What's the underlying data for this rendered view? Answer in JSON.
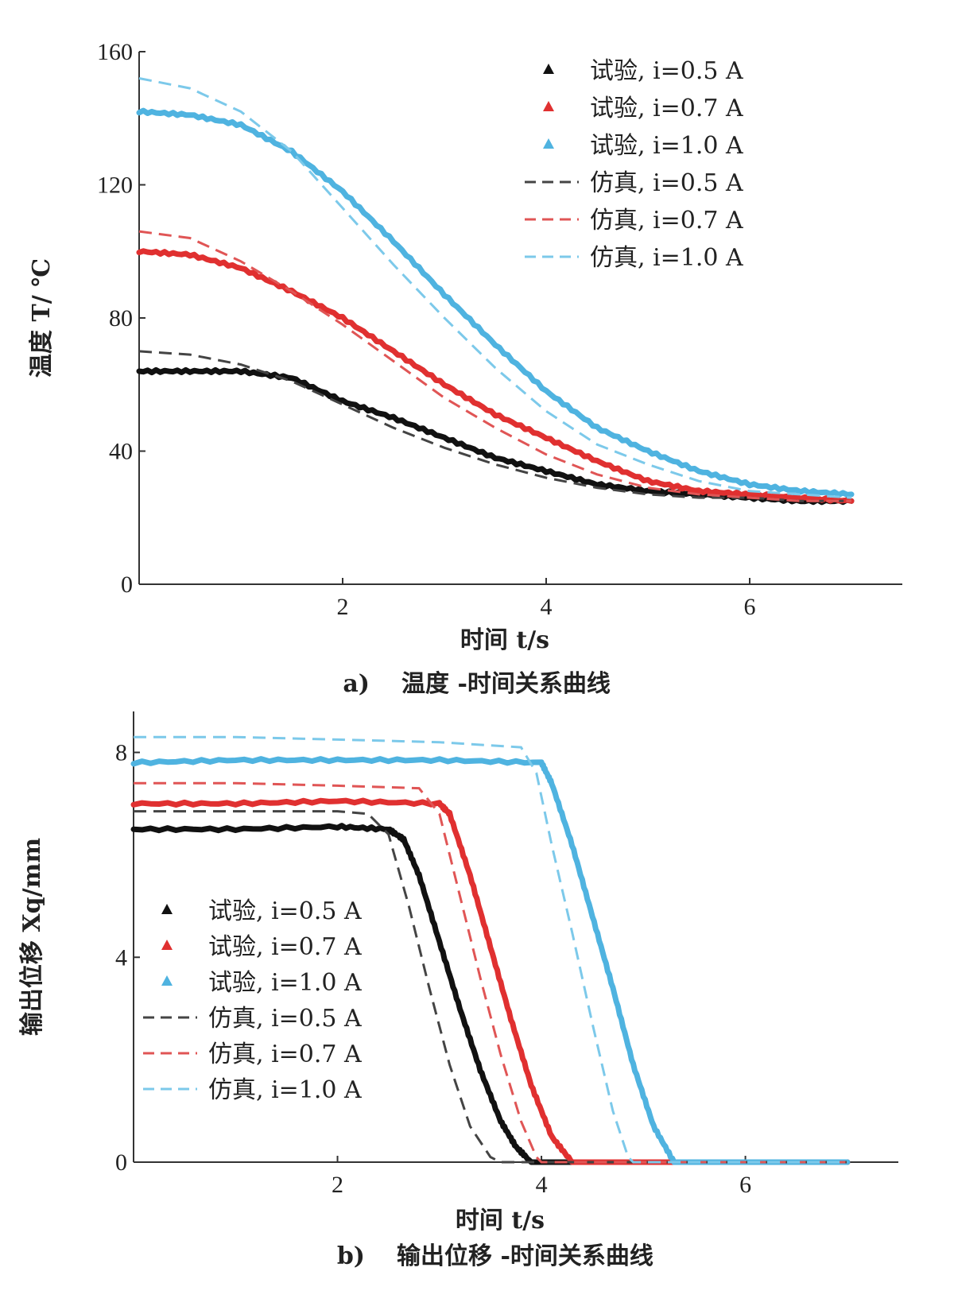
{
  "chart_data": [
    {
      "type": "line",
      "panel": "a",
      "caption_prefix": "a)",
      "caption": "温度 -时间关系曲线",
      "xlabel": "时间 t/s",
      "ylabel": "温度 T/ ℃",
      "xlim": [
        0,
        7.5
      ],
      "ylim": [
        0,
        160
      ],
      "xticks": [
        2,
        4,
        6
      ],
      "yticks": [
        0,
        40,
        80,
        120,
        160
      ],
      "legend_position": "top-right",
      "legend": [
        "试验, i=0.5 A",
        "试验, i=0.7 A",
        "试验, i=1.0 A",
        "仿真, i=0.5 A",
        "仿真, i=0.7 A",
        "仿真, i=1.0 A"
      ],
      "series": [
        {
          "name": "试验, i=0.5 A",
          "style": "experiment",
          "color": "#111111",
          "x": [
            0,
            0.5,
            1.0,
            1.5,
            2.0,
            2.5,
            3.0,
            3.5,
            4.0,
            4.5,
            5.0,
            5.5,
            6.0,
            6.5,
            7.0
          ],
          "y": [
            64,
            64,
            64,
            62,
            55,
            50,
            44,
            38,
            34,
            30,
            28,
            27,
            26,
            25,
            25
          ]
        },
        {
          "name": "试验, i=0.7 A",
          "style": "experiment",
          "color": "#e03030",
          "x": [
            0,
            0.5,
            1.0,
            1.5,
            2.0,
            2.5,
            3.0,
            3.5,
            4.0,
            4.5,
            5.0,
            5.5,
            6.0,
            6.5,
            7.0
          ],
          "y": [
            100,
            99,
            95,
            88,
            80,
            70,
            60,
            51,
            44,
            37,
            31,
            28,
            27,
            26,
            25
          ]
        },
        {
          "name": "试验, i=1.0 A",
          "style": "experiment",
          "color": "#4fb3e0",
          "x": [
            0,
            0.5,
            1.0,
            1.5,
            2.0,
            2.5,
            3.0,
            3.5,
            4.0,
            4.5,
            5.0,
            5.5,
            6.0,
            6.5,
            7.0
          ],
          "y": [
            142,
            141,
            138,
            130,
            118,
            103,
            87,
            72,
            58,
            47,
            40,
            34,
            30,
            28,
            27
          ]
        },
        {
          "name": "仿真, i=0.5 A",
          "style": "simulation",
          "color": "#444444",
          "x": [
            0,
            0.5,
            1.0,
            1.5,
            2.0,
            2.5,
            3.0,
            3.5,
            4.0,
            4.5,
            5.0,
            5.5,
            6.0,
            6.5,
            7.0
          ],
          "y": [
            70,
            69,
            66,
            61,
            54,
            47,
            41,
            36,
            32,
            29,
            27,
            26,
            26,
            25,
            25
          ]
        },
        {
          "name": "仿真, i=0.7 A",
          "style": "simulation",
          "color": "#e05555",
          "x": [
            0,
            0.5,
            1.0,
            1.5,
            2.0,
            2.5,
            3.0,
            3.5,
            4.0,
            4.5,
            5.0,
            5.5,
            6.0,
            6.5,
            7.0
          ],
          "y": [
            106,
            104,
            97,
            88,
            78,
            67,
            56,
            47,
            39,
            33,
            29,
            27,
            26,
            25,
            25
          ]
        },
        {
          "name": "仿真, i=1.0 A",
          "style": "simulation",
          "color": "#7cc9ea",
          "x": [
            0,
            0.5,
            1.0,
            1.5,
            2.0,
            2.5,
            3.0,
            3.5,
            4.0,
            4.5,
            5.0,
            5.5,
            6.0,
            6.5,
            7.0
          ],
          "y": [
            152,
            149,
            142,
            130,
            113,
            96,
            80,
            65,
            52,
            42,
            36,
            31,
            28,
            27,
            26
          ]
        }
      ]
    },
    {
      "type": "line",
      "panel": "b",
      "caption_prefix": "b)",
      "caption": "输出位移 -时间关系曲线",
      "xlabel": "时间 t/s",
      "ylabel": "输出位移 Xq/mm",
      "xlim": [
        0,
        7.5
      ],
      "ylim": [
        0,
        8.8
      ],
      "xticks": [
        2,
        4,
        6
      ],
      "yticks": [
        0,
        4,
        8
      ],
      "legend_position": "center-left",
      "legend": [
        "试验, i=0.5 A",
        "试验, i=0.7 A",
        "试验, i=1.0 A",
        "仿真, i=0.5 A",
        "仿真, i=0.7 A",
        "仿真, i=1.0 A"
      ],
      "series": [
        {
          "name": "试验, i=0.5 A",
          "style": "experiment",
          "color": "#111111",
          "x": [
            0,
            1.0,
            2.0,
            2.5,
            2.65,
            2.8,
            3.0,
            3.2,
            3.4,
            3.6,
            3.75,
            3.9,
            4.5,
            7.0
          ],
          "y": [
            6.5,
            6.5,
            6.55,
            6.5,
            6.3,
            5.6,
            4.3,
            3.0,
            1.8,
            0.8,
            0.3,
            0,
            0,
            0
          ]
        },
        {
          "name": "试验, i=0.7 A",
          "style": "experiment",
          "color": "#e03030",
          "x": [
            0,
            1.0,
            2.0,
            3.0,
            3.1,
            3.3,
            3.5,
            3.7,
            3.9,
            4.1,
            4.3,
            4.5,
            7.0
          ],
          "y": [
            7.0,
            7.0,
            7.05,
            7.0,
            6.8,
            5.6,
            4.2,
            2.8,
            1.5,
            0.5,
            0,
            0,
            0
          ]
        },
        {
          "name": "试验, i=1.0 A",
          "style": "experiment",
          "color": "#4fb3e0",
          "x": [
            0,
            1.0,
            2.0,
            3.0,
            4.0,
            4.1,
            4.3,
            4.5,
            4.7,
            4.9,
            5.1,
            5.3,
            6.0,
            7.0
          ],
          "y": [
            7.8,
            7.85,
            7.85,
            7.85,
            7.8,
            7.4,
            6.2,
            4.8,
            3.4,
            1.9,
            0.7,
            0,
            0,
            0
          ]
        },
        {
          "name": "仿真, i=0.5 A",
          "style": "simulation",
          "color": "#444444",
          "x": [
            0,
            1.0,
            2.0,
            2.3,
            2.5,
            2.7,
            2.9,
            3.1,
            3.3,
            3.5,
            3.6,
            7.0
          ],
          "y": [
            6.85,
            6.85,
            6.85,
            6.8,
            6.4,
            5.0,
            3.4,
            1.9,
            0.7,
            0.1,
            0,
            0
          ]
        },
        {
          "name": "仿真, i=0.7 A",
          "style": "simulation",
          "color": "#e05555",
          "x": [
            0,
            1.0,
            2.0,
            2.8,
            3.0,
            3.2,
            3.4,
            3.6,
            3.8,
            3.95,
            4.0,
            7.0
          ],
          "y": [
            7.4,
            7.4,
            7.35,
            7.3,
            6.8,
            5.2,
            3.6,
            2.1,
            0.8,
            0.1,
            0,
            0
          ]
        },
        {
          "name": "仿真, i=1.0 A",
          "style": "simulation",
          "color": "#7cc9ea",
          "x": [
            0,
            1.0,
            2.0,
            3.0,
            3.8,
            3.95,
            4.1,
            4.3,
            4.5,
            4.7,
            4.85,
            4.9,
            7.0
          ],
          "y": [
            8.3,
            8.3,
            8.25,
            8.2,
            8.1,
            7.6,
            6.2,
            4.5,
            2.7,
            1.0,
            0.1,
            0,
            0
          ]
        }
      ]
    }
  ]
}
